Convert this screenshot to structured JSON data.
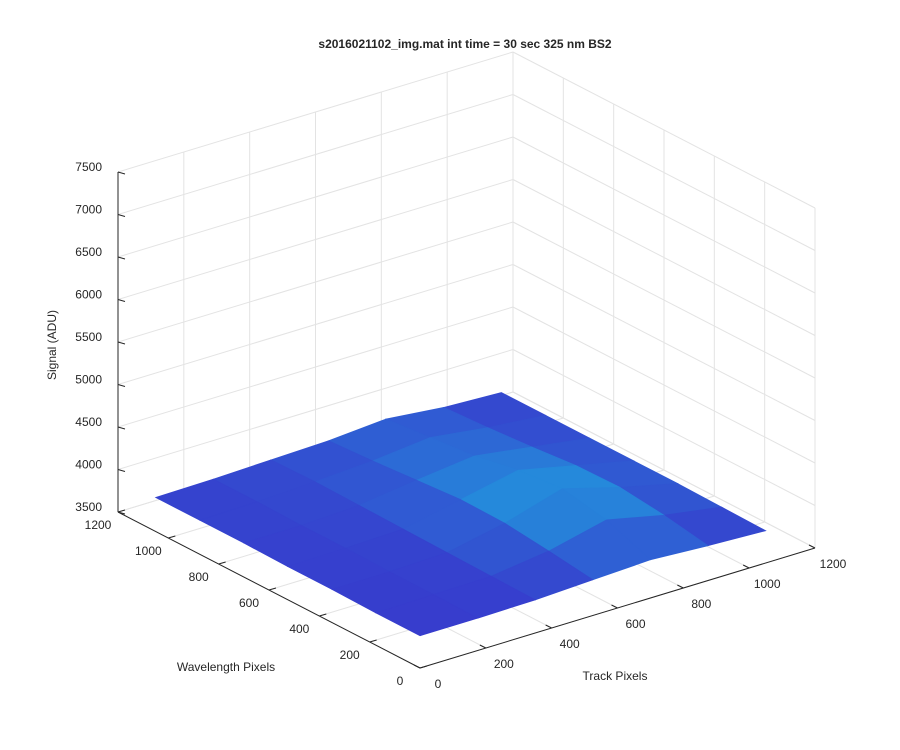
{
  "chart_data": {
    "type": "surface",
    "title": "s2016021102_img.mat int time = 30 sec  325 nm BS2",
    "xlabel": "Track Pixels",
    "ylabel": "Wavelength Pixels",
    "zlabel": "Signal (ADU)",
    "xlim": [
      0,
      1200
    ],
    "ylim": [
      0,
      1200
    ],
    "zlim": [
      3500,
      7500
    ],
    "xticks": [
      0,
      200,
      400,
      600,
      800,
      1000,
      1200
    ],
    "yticks": [
      0,
      200,
      400,
      600,
      800,
      1000,
      1200
    ],
    "zticks": [
      3500,
      4000,
      4500,
      5000,
      5500,
      6000,
      6500,
      7000,
      7500
    ],
    "grid": true,
    "x": [
      0,
      175,
      350,
      525,
      700,
      875,
      1050
    ],
    "y": [
      0,
      175,
      350,
      525,
      700,
      875,
      1050
    ],
    "z": [
      [
        3880,
        3880,
        3890,
        3920,
        3950,
        3910,
        3880
      ],
      [
        3880,
        3890,
        3900,
        3990,
        4150,
        4000,
        3890
      ],
      [
        3890,
        3890,
        3910,
        4050,
        4250,
        4060,
        3900
      ],
      [
        3890,
        3900,
        3920,
        4060,
        4200,
        4050,
        3900
      ],
      [
        3900,
        3900,
        3930,
        4020,
        4100,
        4000,
        3900
      ],
      [
        3900,
        3910,
        3940,
        3980,
        4050,
        3960,
        3900
      ],
      [
        3900,
        3910,
        3930,
        3950,
        4000,
        3930,
        3900
      ]
    ]
  }
}
